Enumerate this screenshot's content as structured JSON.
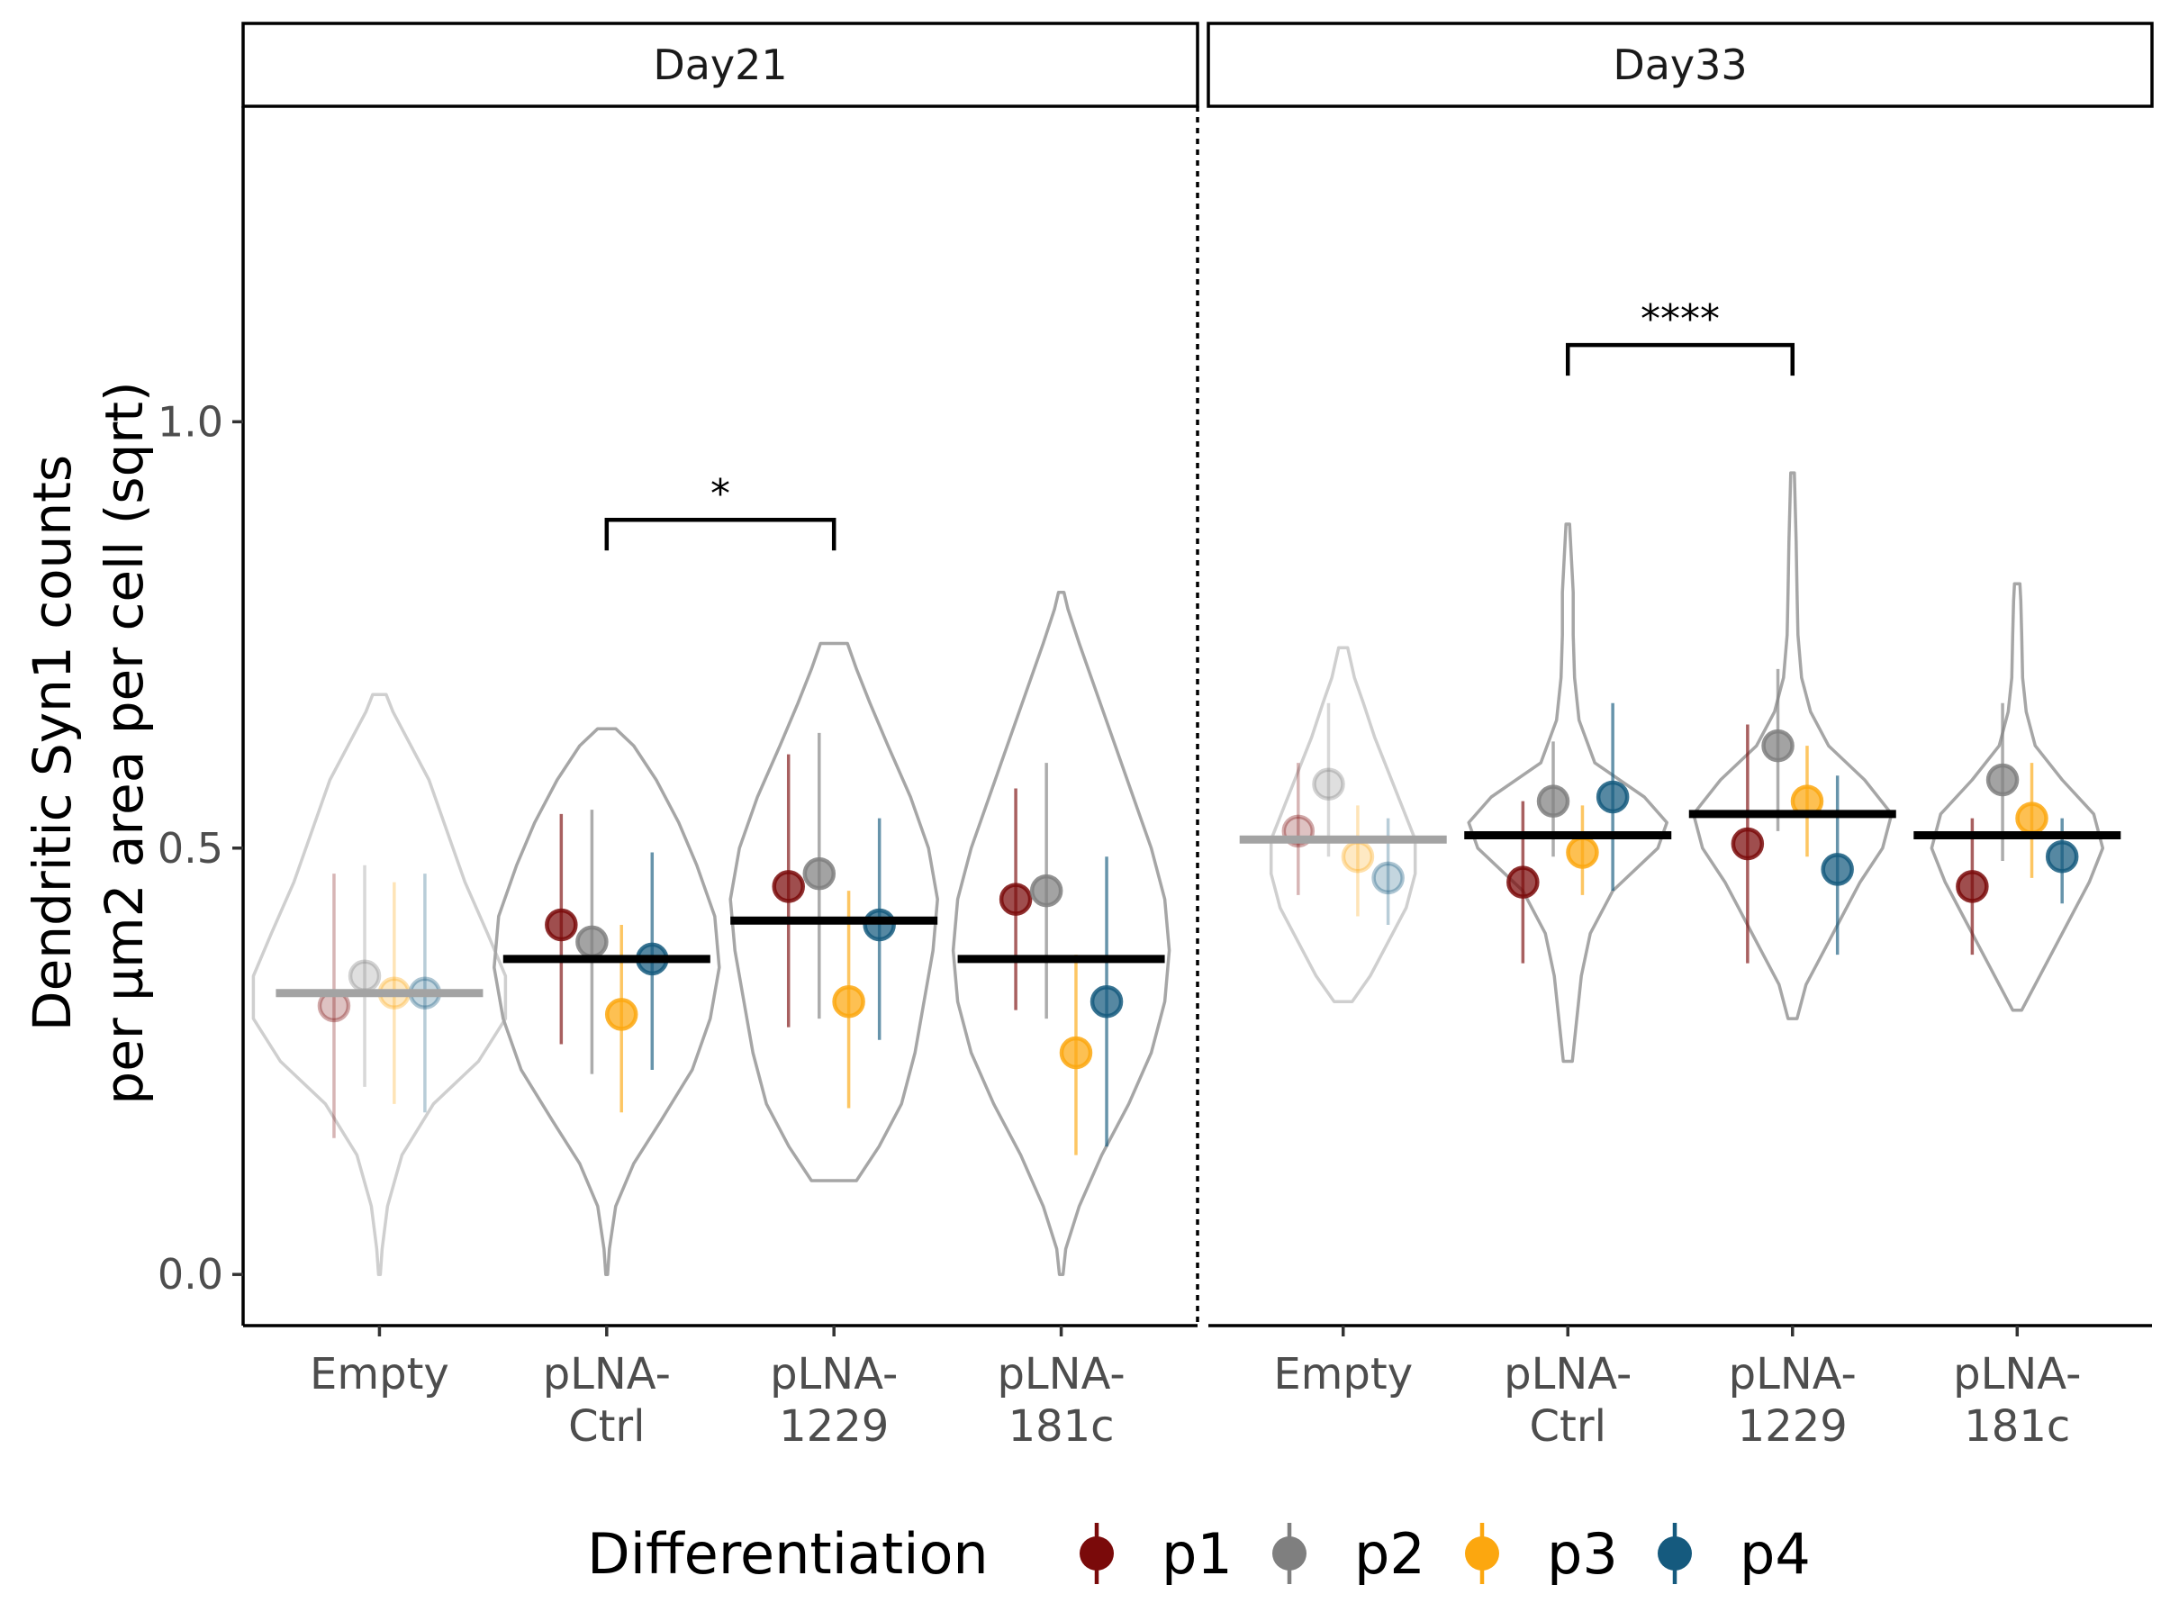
{
  "chart_data": {
    "type": "violin-point-range",
    "y_axis": {
      "label_lines": [
        "Dendritic Syn1 counts",
        "per µm2 area per cell (sqrt)"
      ],
      "ticks": [
        0.0,
        0.5,
        1.0
      ],
      "tick_labels": [
        "0.0",
        "0.5",
        "1.0"
      ],
      "ylim": [
        -0.06,
        1.37
      ]
    },
    "categories": [
      "Empty",
      "pLNA-Ctrl",
      "pLNA-1229",
      "pLNA-181c"
    ],
    "category_label_lines": [
      [
        "Empty"
      ],
      [
        "pLNA-",
        "Ctrl"
      ],
      [
        "pLNA-",
        "1229"
      ],
      [
        "pLNA-",
        "181c"
      ]
    ],
    "legend": {
      "title": "Differentiation",
      "position": "bottom",
      "entries": [
        {
          "name": "p1",
          "color": "#7a0a0a"
        },
        {
          "name": "p2",
          "color": "#7f7f7f"
        },
        {
          "name": "p3",
          "color": "#fca70f"
        },
        {
          "name": "p4",
          "color": "#155a7e"
        }
      ]
    },
    "panels": [
      {
        "strip": "Day21",
        "groups": [
          {
            "category": "Empty",
            "faded": true,
            "mean": 0.33,
            "violin": [
              [
                0.0,
                0.002
              ],
              [
                0.03,
                0.006
              ],
              [
                0.08,
                0.018
              ],
              [
                0.14,
                0.05
              ],
              [
                0.2,
                0.12
              ],
              [
                0.25,
                0.22
              ],
              [
                0.3,
                0.28
              ],
              [
                0.35,
                0.28
              ],
              [
                0.4,
                0.24
              ],
              [
                0.46,
                0.19
              ],
              [
                0.52,
                0.15
              ],
              [
                0.58,
                0.11
              ],
              [
                0.63,
                0.06
              ],
              [
                0.66,
                0.03
              ],
              [
                0.68,
                0.015
              ]
            ],
            "points": [
              {
                "diff": "p1",
                "value": 0.315,
                "low": 0.16,
                "high": 0.47
              },
              {
                "diff": "p2",
                "value": 0.35,
                "low": 0.22,
                "high": 0.48
              },
              {
                "diff": "p3",
                "value": 0.33,
                "low": 0.2,
                "high": 0.46
              },
              {
                "diff": "p4",
                "value": 0.33,
                "low": 0.19,
                "high": 0.47
              }
            ]
          },
          {
            "category": "pLNA-Ctrl",
            "faded": false,
            "mean": 0.37,
            "violin": [
              [
                0.0,
                0.002
              ],
              [
                0.03,
                0.006
              ],
              [
                0.08,
                0.02
              ],
              [
                0.13,
                0.06
              ],
              [
                0.18,
                0.12
              ],
              [
                0.24,
                0.19
              ],
              [
                0.3,
                0.23
              ],
              [
                0.36,
                0.25
              ],
              [
                0.42,
                0.24
              ],
              [
                0.48,
                0.2
              ],
              [
                0.53,
                0.16
              ],
              [
                0.58,
                0.11
              ],
              [
                0.62,
                0.06
              ],
              [
                0.64,
                0.02
              ]
            ],
            "points": [
              {
                "diff": "p1",
                "value": 0.41,
                "low": 0.27,
                "high": 0.54
              },
              {
                "diff": "p2",
                "value": 0.39,
                "low": 0.235,
                "high": 0.545
              },
              {
                "diff": "p3",
                "value": 0.305,
                "low": 0.19,
                "high": 0.41
              },
              {
                "diff": "p4",
                "value": 0.37,
                "low": 0.24,
                "high": 0.495
              }
            ]
          },
          {
            "category": "pLNA-1229",
            "faded": false,
            "mean": 0.415,
            "violin": [
              [
                0.11,
                0.05
              ],
              [
                0.15,
                0.1
              ],
              [
                0.2,
                0.15
              ],
              [
                0.26,
                0.18
              ],
              [
                0.32,
                0.2
              ],
              [
                0.38,
                0.22
              ],
              [
                0.44,
                0.23
              ],
              [
                0.5,
                0.21
              ],
              [
                0.56,
                0.17
              ],
              [
                0.62,
                0.12
              ],
              [
                0.67,
                0.08
              ],
              [
                0.71,
                0.05
              ],
              [
                0.74,
                0.03
              ]
            ],
            "points": [
              {
                "diff": "p1",
                "value": 0.455,
                "low": 0.29,
                "high": 0.61
              },
              {
                "diff": "p2",
                "value": 0.47,
                "low": 0.3,
                "high": 0.635
              },
              {
                "diff": "p3",
                "value": 0.32,
                "low": 0.195,
                "high": 0.45
              },
              {
                "diff": "p4",
                "value": 0.41,
                "low": 0.275,
                "high": 0.535
              }
            ]
          },
          {
            "category": "pLNA-181c",
            "faded": false,
            "mean": 0.37,
            "violin": [
              [
                0.0,
                0.004
              ],
              [
                0.03,
                0.01
              ],
              [
                0.08,
                0.04
              ],
              [
                0.14,
                0.09
              ],
              [
                0.2,
                0.15
              ],
              [
                0.26,
                0.2
              ],
              [
                0.32,
                0.23
              ],
              [
                0.38,
                0.24
              ],
              [
                0.44,
                0.23
              ],
              [
                0.5,
                0.2
              ],
              [
                0.56,
                0.16
              ],
              [
                0.62,
                0.12
              ],
              [
                0.68,
                0.08
              ],
              [
                0.74,
                0.04
              ],
              [
                0.78,
                0.015
              ],
              [
                0.8,
                0.006
              ]
            ],
            "points": [
              {
                "diff": "p1",
                "value": 0.44,
                "low": 0.31,
                "high": 0.57
              },
              {
                "diff": "p2",
                "value": 0.45,
                "low": 0.3,
                "high": 0.6
              },
              {
                "diff": "p3",
                "value": 0.26,
                "low": 0.14,
                "high": 0.375
              },
              {
                "diff": "p4",
                "value": 0.32,
                "low": 0.15,
                "high": 0.49
              }
            ]
          }
        ],
        "significance": [
          {
            "from": "pLNA-Ctrl",
            "to": "pLNA-1229",
            "y": 0.885,
            "label": "*"
          }
        ]
      },
      {
        "strip": "Day33",
        "groups": [
          {
            "category": "Empty",
            "faded": true,
            "mean": 0.51,
            "violin": [
              [
                0.32,
                0.02
              ],
              [
                0.35,
                0.06
              ],
              [
                0.39,
                0.1
              ],
              [
                0.43,
                0.14
              ],
              [
                0.47,
                0.16
              ],
              [
                0.51,
                0.16
              ],
              [
                0.55,
                0.13
              ],
              [
                0.59,
                0.1
              ],
              [
                0.63,
                0.07
              ],
              [
                0.67,
                0.045
              ],
              [
                0.7,
                0.025
              ],
              [
                0.735,
                0.01
              ]
            ],
            "points": [
              {
                "diff": "p1",
                "value": 0.52,
                "low": 0.445,
                "high": 0.6
              },
              {
                "diff": "p2",
                "value": 0.575,
                "low": 0.49,
                "high": 0.67
              },
              {
                "diff": "p3",
                "value": 0.49,
                "low": 0.42,
                "high": 0.55
              },
              {
                "diff": "p4",
                "value": 0.465,
                "low": 0.41,
                "high": 0.535
              }
            ]
          },
          {
            "category": "pLNA-Ctrl",
            "faded": false,
            "mean": 0.515,
            "violin": [
              [
                0.25,
                0.01
              ],
              [
                0.3,
                0.02
              ],
              [
                0.35,
                0.03
              ],
              [
                0.4,
                0.05
              ],
              [
                0.45,
                0.1
              ],
              [
                0.5,
                0.2
              ],
              [
                0.53,
                0.22
              ],
              [
                0.56,
                0.17
              ],
              [
                0.6,
                0.06
              ],
              [
                0.65,
                0.025
              ],
              [
                0.7,
                0.015
              ],
              [
                0.75,
                0.012
              ],
              [
                0.8,
                0.012
              ],
              [
                0.84,
                0.008
              ],
              [
                0.88,
                0.004
              ]
            ],
            "points": [
              {
                "diff": "p1",
                "value": 0.46,
                "low": 0.365,
                "high": 0.555
              },
              {
                "diff": "p2",
                "value": 0.555,
                "low": 0.49,
                "high": 0.625
              },
              {
                "diff": "p3",
                "value": 0.495,
                "low": 0.445,
                "high": 0.55
              },
              {
                "diff": "p4",
                "value": 0.56,
                "low": 0.45,
                "high": 0.67
              }
            ]
          },
          {
            "category": "pLNA-1229",
            "faded": false,
            "mean": 0.54,
            "violin": [
              [
                0.3,
                0.01
              ],
              [
                0.34,
                0.03
              ],
              [
                0.38,
                0.07
              ],
              [
                0.42,
                0.11
              ],
              [
                0.46,
                0.15
              ],
              [
                0.5,
                0.2
              ],
              [
                0.54,
                0.22
              ],
              [
                0.58,
                0.16
              ],
              [
                0.62,
                0.08
              ],
              [
                0.66,
                0.04
              ],
              [
                0.7,
                0.02
              ],
              [
                0.75,
                0.012
              ],
              [
                0.8,
                0.01
              ],
              [
                0.86,
                0.008
              ],
              [
                0.9,
                0.006
              ],
              [
                0.94,
                0.004
              ]
            ],
            "points": [
              {
                "diff": "p1",
                "value": 0.505,
                "low": 0.365,
                "high": 0.645
              },
              {
                "diff": "p2",
                "value": 0.62,
                "low": 0.52,
                "high": 0.71
              },
              {
                "diff": "p3",
                "value": 0.555,
                "low": 0.49,
                "high": 0.62
              },
              {
                "diff": "p4",
                "value": 0.475,
                "low": 0.375,
                "high": 0.585
              }
            ]
          },
          {
            "category": "pLNA-181c",
            "faded": false,
            "mean": 0.515,
            "violin": [
              [
                0.31,
                0.01
              ],
              [
                0.34,
                0.04
              ],
              [
                0.38,
                0.08
              ],
              [
                0.42,
                0.12
              ],
              [
                0.46,
                0.16
              ],
              [
                0.5,
                0.19
              ],
              [
                0.54,
                0.17
              ],
              [
                0.58,
                0.1
              ],
              [
                0.62,
                0.04
              ],
              [
                0.66,
                0.02
              ],
              [
                0.7,
                0.012
              ],
              [
                0.75,
                0.01
              ],
              [
                0.79,
                0.008
              ],
              [
                0.81,
                0.006
              ]
            ],
            "points": [
              {
                "diff": "p1",
                "value": 0.455,
                "low": 0.375,
                "high": 0.535
              },
              {
                "diff": "p2",
                "value": 0.58,
                "low": 0.485,
                "high": 0.67
              },
              {
                "diff": "p3",
                "value": 0.535,
                "low": 0.465,
                "high": 0.6
              },
              {
                "diff": "p4",
                "value": 0.49,
                "low": 0.435,
                "high": 0.535
              }
            ]
          }
        ],
        "significance": [
          {
            "from": "pLNA-Ctrl",
            "to": "pLNA-1229",
            "y": 1.09,
            "label": "****"
          }
        ]
      }
    ]
  }
}
